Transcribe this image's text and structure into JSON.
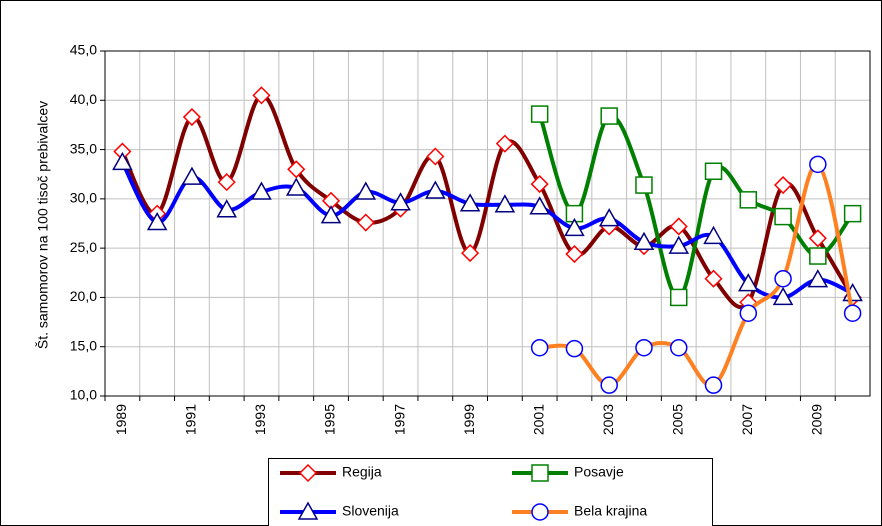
{
  "chart_data": {
    "type": "line",
    "y_label": "Št. samomorov na 100 tisoč prebivalcev",
    "categories": [
      "1989",
      null,
      "1991",
      null,
      "1993",
      null,
      "1995",
      null,
      "1997",
      null,
      "1999",
      null,
      "2001",
      null,
      "2003",
      null,
      "2005",
      null,
      "2007",
      null,
      "2009",
      null
    ],
    "series": [
      {
        "name": "Regija",
        "color": "#800000",
        "marker": "diamond",
        "marker_color": "#ff0000",
        "values": [
          34.8,
          28.5,
          38.3,
          31.7,
          40.5,
          33.0,
          29.8,
          27.6,
          29.0,
          34.3,
          24.5,
          35.6,
          31.5,
          24.4,
          27.2,
          25.2,
          27.2,
          21.9,
          19.5,
          31.4,
          26.0,
          20.0
        ]
      },
      {
        "name": "Posavje",
        "color": "#008000",
        "marker": "square",
        "marker_color": "#008000",
        "values": [
          null,
          null,
          null,
          null,
          null,
          null,
          null,
          null,
          null,
          null,
          null,
          null,
          38.6,
          28.5,
          38.4,
          31.4,
          20.0,
          32.8,
          29.9,
          28.2,
          24.2,
          28.5
        ]
      },
      {
        "name": "Slovenija",
        "color": "#0000ff",
        "marker": "triangle",
        "marker_color": "#000080",
        "values": [
          33.7,
          27.6,
          32.2,
          28.9,
          30.7,
          31.1,
          28.3,
          30.7,
          29.6,
          30.8,
          29.5,
          29.4,
          29.2,
          27.0,
          28.0,
          25.6,
          25.2,
          26.2,
          21.4,
          20.0,
          21.8,
          20.4
        ]
      },
      {
        "name": "Bela krajina",
        "color": "#ff8020",
        "marker": "circle",
        "marker_color": "#0000ff",
        "values": [
          null,
          null,
          null,
          null,
          null,
          null,
          null,
          null,
          null,
          null,
          null,
          null,
          14.9,
          14.8,
          11.1,
          14.9,
          14.9,
          11.1,
          18.4,
          21.9,
          33.5,
          18.4
        ]
      }
    ],
    "ylim": [
      10,
      45
    ],
    "yticks": [
      {
        "value": 10,
        "label": "10,0"
      },
      {
        "value": 15,
        "label": "15,0"
      },
      {
        "value": 20,
        "label": "20,0"
      },
      {
        "value": 25,
        "label": "25,0"
      },
      {
        "value": 30,
        "label": "30,0"
      },
      {
        "value": 35,
        "label": "35,0"
      },
      {
        "value": 40,
        "label": "40,0"
      },
      {
        "value": 45,
        "label": "45,0"
      }
    ],
    "grid": true
  }
}
